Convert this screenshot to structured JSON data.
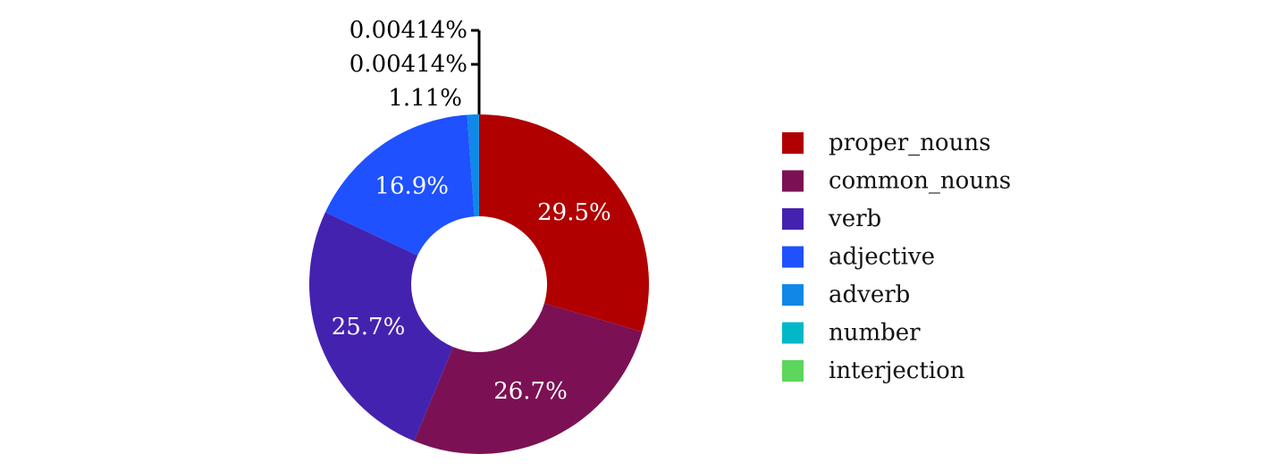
{
  "chart_data": {
    "type": "pie",
    "style": "donut",
    "categories": [
      "proper_nouns",
      "common_nouns",
      "verb",
      "adjective",
      "adverb",
      "number",
      "interjection"
    ],
    "values": [
      29.5,
      26.7,
      25.7,
      16.9,
      1.11,
      0.00414,
      0.00414
    ],
    "labels": [
      "29.5%",
      "26.7%",
      "25.7%",
      "16.9%",
      "1.11%",
      "0.00414%",
      "0.00414%"
    ],
    "colors": [
      "#b00000",
      "#7b1154",
      "#4422b0",
      "#1f51ff",
      "#0f88e8",
      "#00b8c8",
      "#5cd65c"
    ],
    "legend_position": "right"
  }
}
